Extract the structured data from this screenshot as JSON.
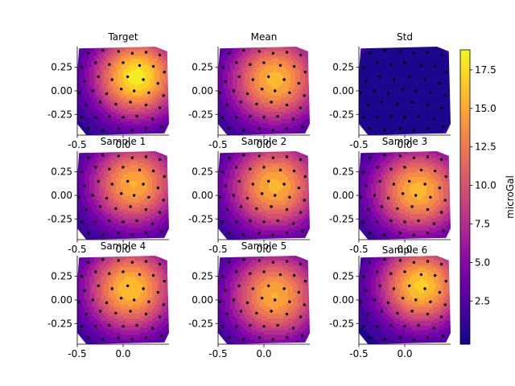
{
  "chart_data": {
    "type": "contour",
    "colormap": "plasma",
    "colorbar": {
      "label": "microGal",
      "ticks": [
        "2.5",
        "5.0",
        "7.5",
        "10.0",
        "12.5",
        "15.0",
        "17.5"
      ],
      "tick_values": [
        2.5,
        5.0,
        7.5,
        10.0,
        12.5,
        15.0,
        17.5
      ],
      "range": [
        -0.3,
        18.8
      ]
    },
    "x_ticks": [
      "-0.5",
      "0.0"
    ],
    "x_tick_values": [
      -0.5,
      0.0
    ],
    "y_ticks": [
      "0.25",
      "0.00",
      "-0.25"
    ],
    "y_tick_values": [
      0.25,
      0.0,
      -0.25
    ],
    "xlim": [
      -0.5,
      0.5
    ],
    "ylim": [
      -0.47,
      0.47
    ],
    "panels": [
      {
        "title": "Target",
        "peak": 18.5,
        "cx": 0.15,
        "cy": 0.15,
        "sx": 0.34,
        "sy": 0.32,
        "kind": "field"
      },
      {
        "title": "Mean",
        "peak": 16.0,
        "cx": 0.12,
        "cy": 0.12,
        "sx": 0.36,
        "sy": 0.34,
        "kind": "field"
      },
      {
        "title": "Std",
        "peak": 1.2,
        "cx": 0.0,
        "cy": 0.0,
        "sx": 0.5,
        "sy": 0.5,
        "kind": "std"
      },
      {
        "title": "Sample 1",
        "peak": 15.5,
        "cx": 0.12,
        "cy": 0.12,
        "sx": 0.35,
        "sy": 0.33,
        "kind": "field"
      },
      {
        "title": "Sample 2",
        "peak": 15.8,
        "cx": 0.12,
        "cy": 0.1,
        "sx": 0.36,
        "sy": 0.34,
        "kind": "field"
      },
      {
        "title": "Sample 3",
        "peak": 16.0,
        "cx": 0.15,
        "cy": 0.05,
        "sx": 0.36,
        "sy": 0.33,
        "kind": "field"
      },
      {
        "title": "Sample 4",
        "peak": 16.5,
        "cx": 0.08,
        "cy": 0.12,
        "sx": 0.35,
        "sy": 0.34,
        "kind": "field"
      },
      {
        "title": "Sample 5",
        "peak": 15.5,
        "cx": 0.12,
        "cy": 0.05,
        "sx": 0.36,
        "sy": 0.34,
        "kind": "field"
      },
      {
        "title": "Sample 6",
        "peak": 17.0,
        "cx": 0.18,
        "cy": 0.15,
        "sx": 0.34,
        "sy": 0.32,
        "kind": "field"
      }
    ],
    "stations": [
      [
        -0.38,
        0.4
      ],
      [
        -0.22,
        0.43
      ],
      [
        -0.05,
        0.42
      ],
      [
        0.1,
        0.4
      ],
      [
        0.25,
        0.41
      ],
      [
        0.4,
        0.38
      ],
      [
        -0.45,
        0.25
      ],
      [
        -0.3,
        0.3
      ],
      [
        -0.15,
        0.28
      ],
      [
        0.0,
        0.3
      ],
      [
        0.18,
        0.27
      ],
      [
        0.33,
        0.26
      ],
      [
        0.45,
        0.2
      ],
      [
        -0.42,
        0.1
      ],
      [
        -0.27,
        0.15
      ],
      [
        -0.12,
        0.12
      ],
      [
        0.05,
        0.15
      ],
      [
        0.22,
        0.12
      ],
      [
        0.38,
        0.08
      ],
      [
        -0.48,
        -0.02
      ],
      [
        -0.33,
        0.0
      ],
      [
        -0.18,
        -0.03
      ],
      [
        -0.02,
        0.02
      ],
      [
        0.12,
        0.0
      ],
      [
        0.28,
        -0.02
      ],
      [
        0.44,
        -0.05
      ],
      [
        -0.4,
        -0.15
      ],
      [
        -0.25,
        -0.12
      ],
      [
        -0.08,
        -0.14
      ],
      [
        0.08,
        -0.12
      ],
      [
        0.25,
        -0.15
      ],
      [
        0.4,
        -0.18
      ],
      [
        -0.45,
        -0.28
      ],
      [
        -0.3,
        -0.28
      ],
      [
        -0.15,
        -0.27
      ],
      [
        0.0,
        -0.28
      ],
      [
        0.15,
        -0.27
      ],
      [
        0.32,
        -0.3
      ],
      [
        -0.38,
        -0.4
      ],
      [
        -0.22,
        -0.42
      ],
      [
        -0.05,
        -0.4
      ],
      [
        0.1,
        -0.42
      ],
      [
        0.25,
        -0.4
      ],
      [
        0.42,
        -0.38
      ]
    ]
  }
}
